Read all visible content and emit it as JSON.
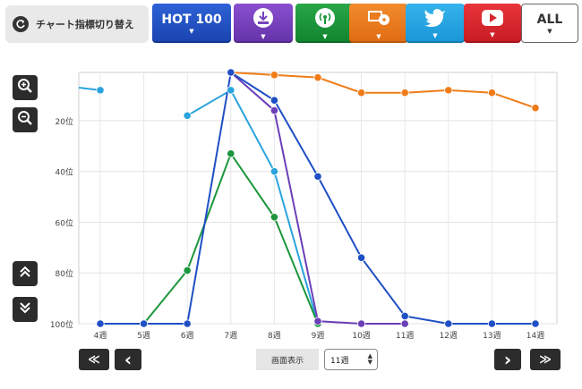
{
  "toolbar": {
    "switch_label": "チャート指標切り替え",
    "tabs": [
      {
        "id": "hot100",
        "label": "HOT 100",
        "icon": "hot100-text",
        "color": "#1f4fc4"
      },
      {
        "id": "download",
        "label": "",
        "icon": "download-icon",
        "color": "#7541bd"
      },
      {
        "id": "radio",
        "label": "",
        "icon": "radio-broadcast-icon",
        "color": "#1c963c"
      },
      {
        "id": "tv",
        "label": "",
        "icon": "tv-disc-icon",
        "color": "#ea7b1f"
      },
      {
        "id": "twitter",
        "label": "",
        "icon": "twitter-bird-icon",
        "color": "#26a5e1"
      },
      {
        "id": "youtube",
        "label": "",
        "icon": "youtube-play-icon",
        "color": "#d6282e"
      },
      {
        "id": "all",
        "label": "ALL",
        "icon": "",
        "color": "#ffffff"
      }
    ]
  },
  "chart_data": {
    "type": "line",
    "x": [
      "4週",
      "5週",
      "6週",
      "7週",
      "8週",
      "9週",
      "10週",
      "11週",
      "12週",
      "13週",
      "14週"
    ],
    "y_ticks": [
      "20位",
      "40位",
      "60位",
      "80位",
      "100位"
    ],
    "ylim": [
      100,
      1
    ],
    "y_inverted": true,
    "grid": true,
    "series": [
      {
        "color": "#f07c18",
        "values": [
          null,
          null,
          null,
          1,
          2,
          3,
          9,
          9,
          8,
          9,
          15
        ]
      },
      {
        "color": "#2aa3dc",
        "values": [
          8,
          null,
          18,
          8,
          40,
          100,
          null,
          null,
          null,
          null,
          null
        ]
      },
      {
        "color": "#1c963c",
        "values": [
          100,
          100,
          79,
          33,
          58,
          100,
          null,
          null,
          null,
          null,
          null
        ]
      },
      {
        "color": "#6a3fb8",
        "values": [
          null,
          null,
          null,
          1,
          16,
          99,
          100,
          100,
          null,
          null,
          null
        ]
      },
      {
        "color": "#1f4fc4",
        "values": [
          100,
          100,
          100,
          1,
          12,
          42,
          74,
          97,
          100,
          100,
          100
        ]
      }
    ]
  },
  "controls": {
    "view_label": "画面表示",
    "view_value": "11週",
    "first_label": "≪",
    "prev_label": "‹",
    "next_label": "›",
    "last_label": "≫"
  }
}
